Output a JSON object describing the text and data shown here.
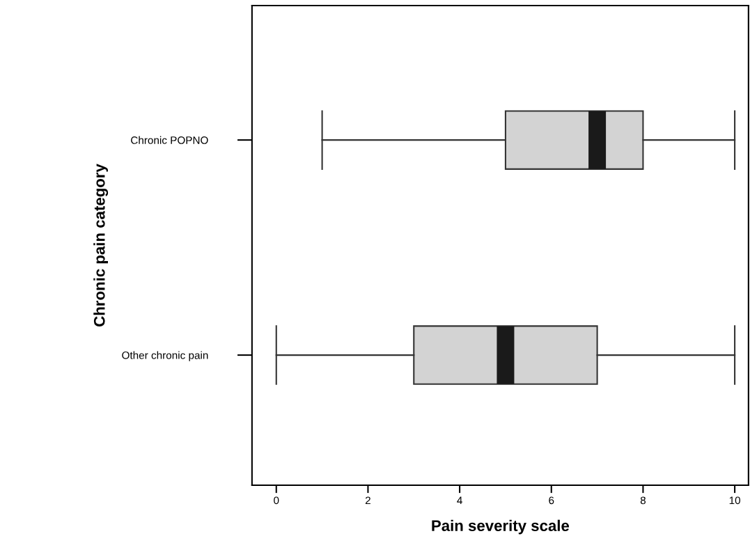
{
  "chart_data": {
    "type": "box",
    "orientation": "horizontal",
    "xlabel": "Pain severity scale",
    "ylabel": "Chronic pain category",
    "categories": [
      "Chronic POPNO",
      "Other chronic pain"
    ],
    "boxes": [
      {
        "low": 1,
        "q1": 5,
        "median": 7,
        "q3": 8,
        "high": 10
      },
      {
        "low": 0,
        "q1": 3,
        "median": 5,
        "q3": 7,
        "high": 10
      }
    ],
    "color": "#d3d3d3",
    "xlim": [
      -0.53,
      10.3
    ],
    "xticks": [
      0,
      2,
      4,
      6,
      8,
      10
    ],
    "grid": false
  }
}
